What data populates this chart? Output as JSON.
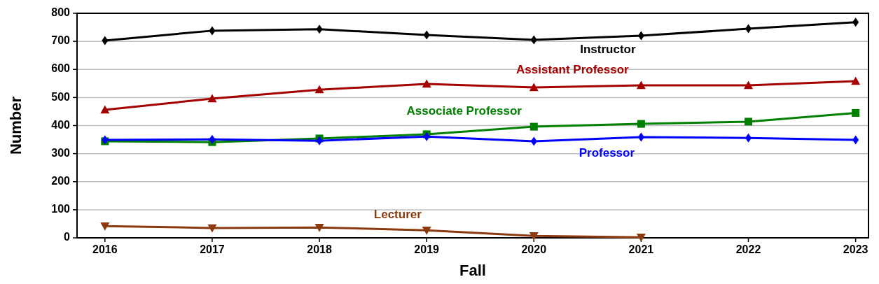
{
  "chart_data": {
    "type": "line",
    "xlabel": "Fall",
    "ylabel": "Number",
    "x": [
      2016,
      2017,
      2018,
      2019,
      2020,
      2021,
      2022,
      2023
    ],
    "xlim": [
      2015.74,
      2023.12
    ],
    "xticks": [
      2016,
      2017,
      2018,
      2019,
      2020,
      2021,
      2022,
      2023
    ],
    "ylim": [
      0,
      800
    ],
    "yticks": [
      0,
      100,
      200,
      300,
      400,
      500,
      600,
      700,
      800
    ],
    "grid": "y",
    "legend": false,
    "line_style": "solid",
    "series": [
      {
        "name": "Instructor",
        "color": "#000000",
        "marker": "diamond",
        "values": [
          703,
          738,
          743,
          723,
          705,
          720,
          745,
          768
        ]
      },
      {
        "name": "Assistant Professor",
        "color": "#a50000",
        "marker": "triangle",
        "values": [
          456,
          496,
          528,
          548,
          536,
          543,
          543,
          558
        ]
      },
      {
        "name": "Associate Professor",
        "color": "#008000",
        "marker": "square",
        "values": [
          344,
          341,
          354,
          369,
          396,
          406,
          414,
          445
        ]
      },
      {
        "name": "Professor",
        "color": "#0000ff",
        "marker": "diamond",
        "values": [
          349,
          351,
          346,
          361,
          344,
          359,
          356,
          349
        ]
      },
      {
        "name": "Lecturer",
        "color": "#8b3a0f",
        "marker": "triangle-down",
        "values": [
          42,
          35,
          37,
          27,
          7,
          2,
          null,
          null
        ]
      }
    ]
  }
}
